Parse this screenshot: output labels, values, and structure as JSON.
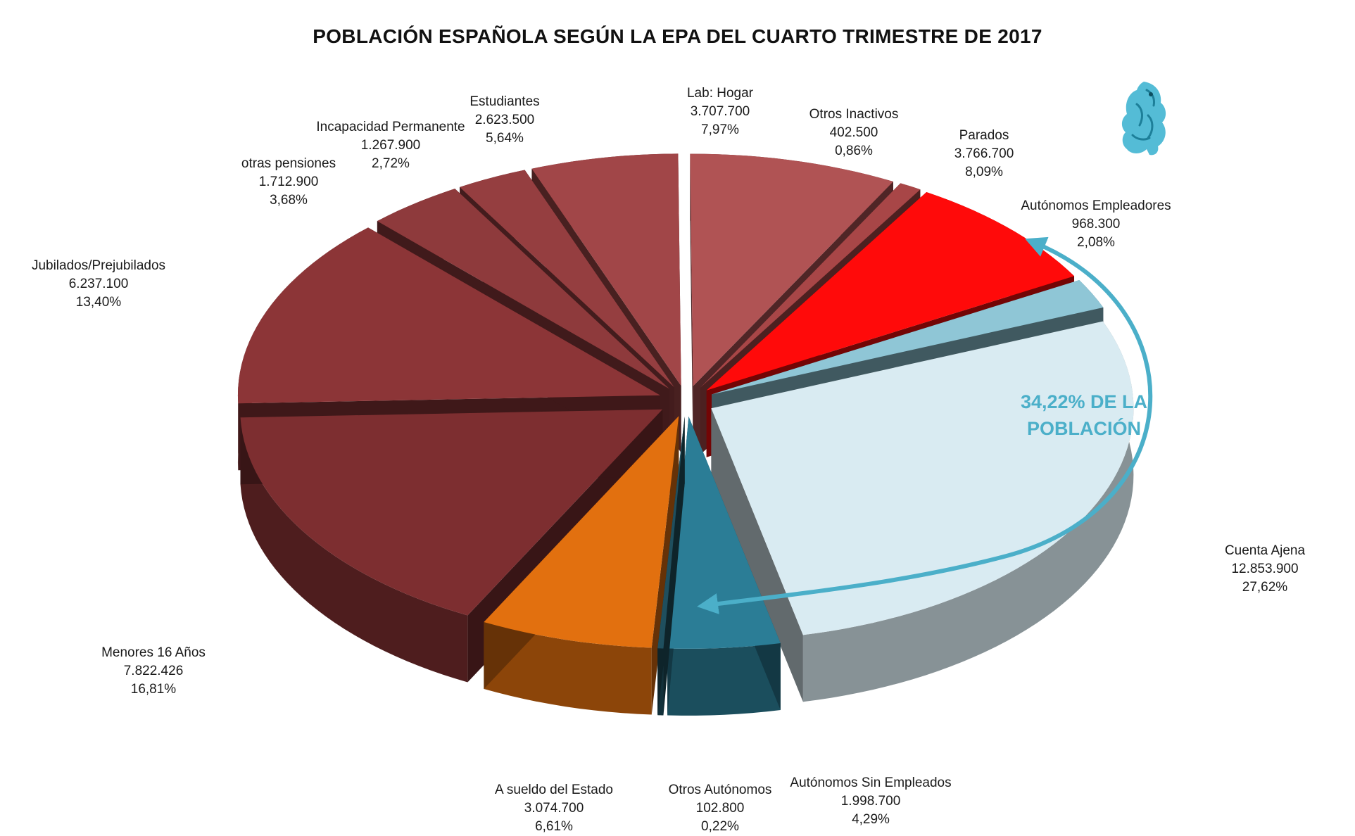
{
  "chart_data": {
    "type": "pie",
    "title": "POBLACIÓN ESPAÑOLA SEGÚN LA EPA DEL CUARTO TRIMESTRE DE 2017",
    "slices": [
      {
        "name": "Cuenta Ajena",
        "value": "12.853.900",
        "percent": "27,62%",
        "pct": 27.62,
        "color": "#d9ebf2"
      },
      {
        "name": "Autónomos Sin Empleados",
        "value": "1.998.700",
        "percent": "4,29%",
        "pct": 4.29,
        "color": "#2b7d96"
      },
      {
        "name": "Otros Autónomos",
        "value": "102.800",
        "percent": "0,22%",
        "pct": 0.22,
        "color": "#1f4f5e"
      },
      {
        "name": "A sueldo del Estado",
        "value": "3.074.700",
        "percent": "6,61%",
        "pct": 6.61,
        "color": "#e2700f"
      },
      {
        "name": "Menores 16 Años",
        "value": "7.822.426",
        "percent": "16,81%",
        "pct": 16.81,
        "color": "#7d2e30"
      },
      {
        "name": "Jubilados/Prejubilados",
        "value": "6.237.100",
        "percent": "13,40%",
        "pct": 13.4,
        "color": "#8c3537"
      },
      {
        "name": "otras pensiones",
        "value": "1.712.900",
        "percent": "3,68%",
        "pct": 3.68,
        "color": "#8e3a3c"
      },
      {
        "name": "Incapacidad Permanente",
        "value": "1.267.900",
        "percent": "2,72%",
        "pct": 2.72,
        "color": "#953e40"
      },
      {
        "name": "Estudiantes",
        "value": "2.623.500",
        "percent": "5,64%",
        "pct": 5.64,
        "color": "#a14648"
      },
      {
        "name": "Lab: Hogar",
        "value": "3.707.700",
        "percent": "7,97%",
        "pct": 7.97,
        "color": "#b05354"
      },
      {
        "name": "Otros Inactivos",
        "value": "402.500",
        "percent": "0,86%",
        "pct": 0.86,
        "color": "#a84647"
      },
      {
        "name": "Parados",
        "value": "3.766.700",
        "percent": "8,09%",
        "pct": 8.09,
        "color": "#ff0a0a"
      },
      {
        "name": "Autónomos Empleadores",
        "value": "968.300",
        "percent": "2,08%",
        "pct": 2.08,
        "color": "#8fc6d6"
      }
    ],
    "annotation": {
      "line1": "34,22% DE LA",
      "line2": "POBLACIÓN",
      "color": "#4bafc9"
    }
  }
}
